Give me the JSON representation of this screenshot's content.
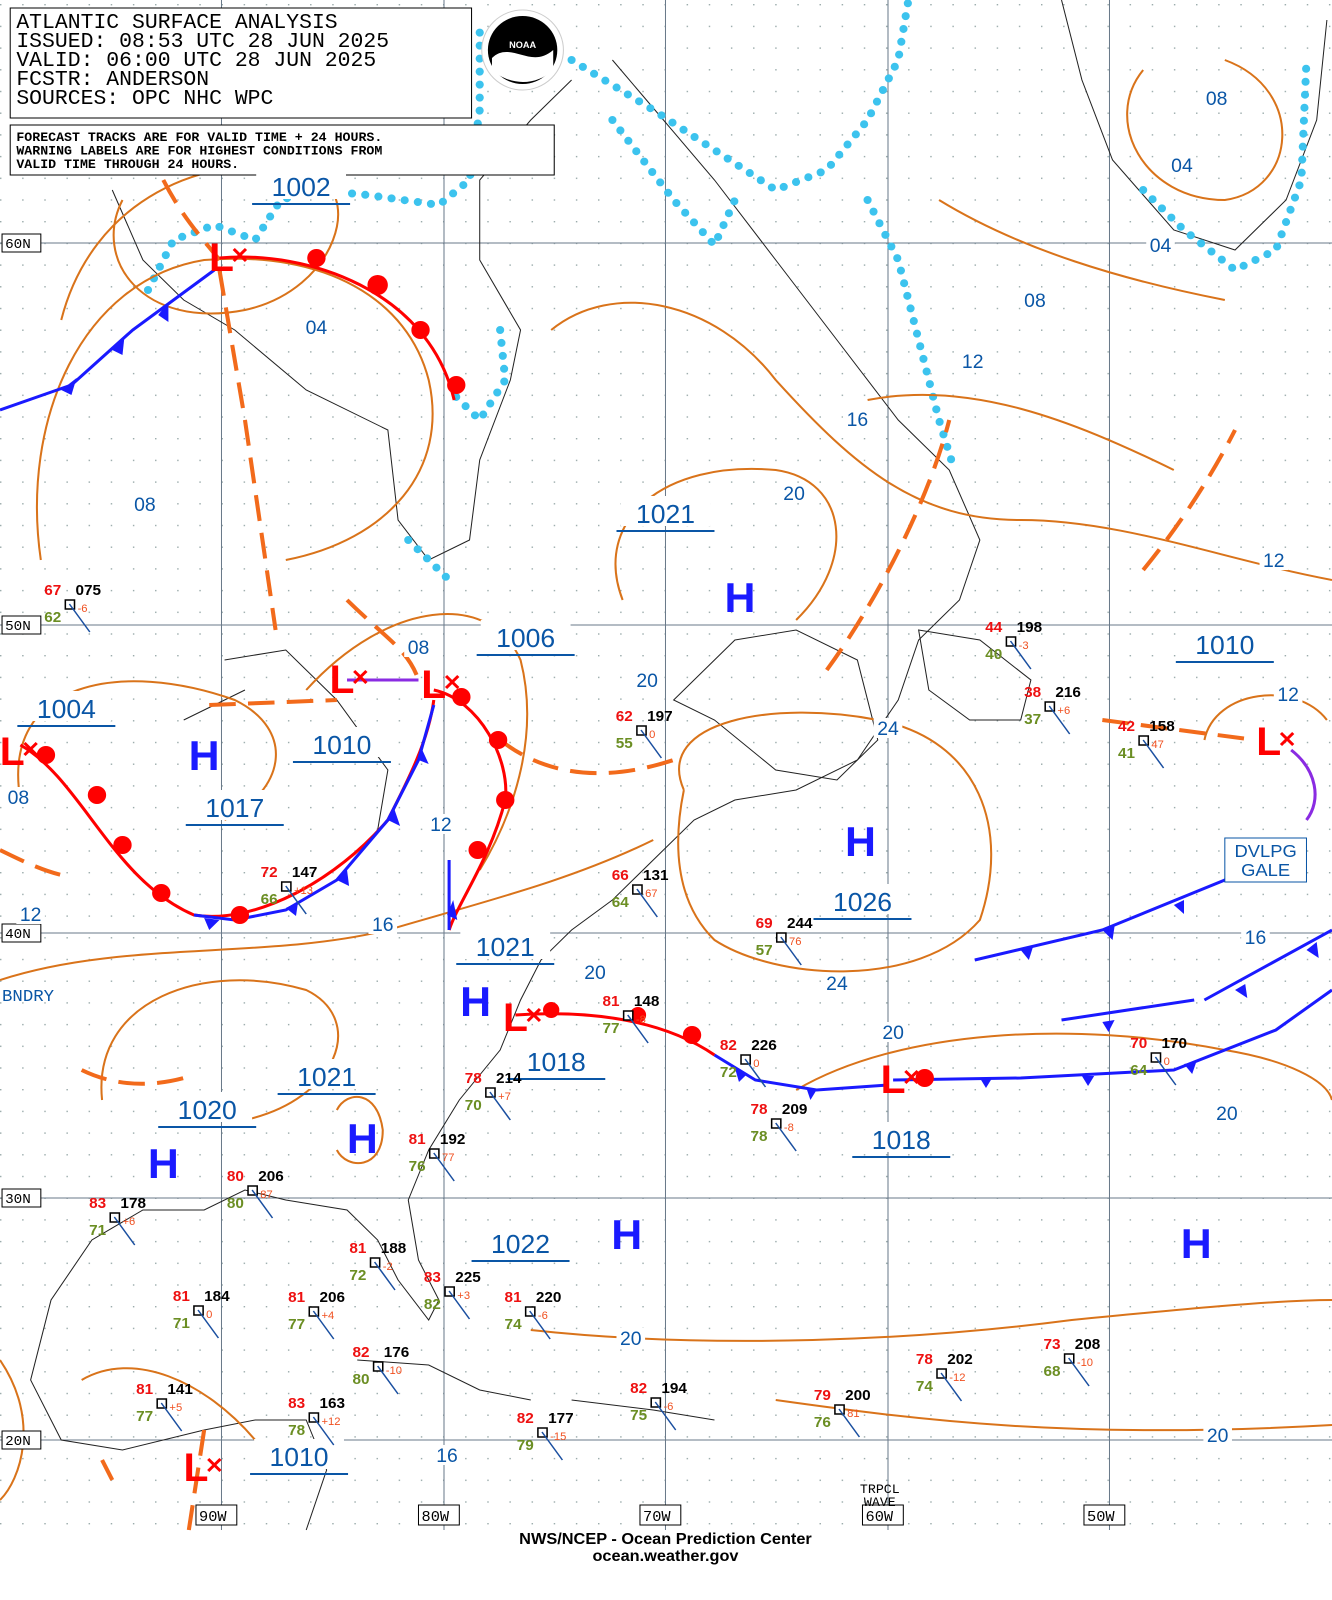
{
  "header": {
    "lines": [
      "ATLANTIC SURFACE ANALYSIS",
      "ISSUED: 08:53 UTC 28 JUN 2025",
      "VALID:  06:00 UTC 28 JUN 2025",
      "FCSTR:  ANDERSON",
      "SOURCES: OPC NHC WPC"
    ],
    "note": [
      "FORECAST TRACKS ARE FOR VALID TIME + 24 HOURS.",
      "WARNING LABELS ARE FOR HIGHEST CONDITIONS FROM",
      "VALID TIME THROUGH 24 HOURS."
    ],
    "logo": "NOAA"
  },
  "lat_labels": [
    "60N",
    "50N",
    "40N",
    "30N",
    "20N"
  ],
  "lon_labels": [
    "90W",
    "80W",
    "70W",
    "60W",
    "50W"
  ],
  "central_pressures": [
    "1002",
    "1021",
    "1006",
    "1010",
    "1004",
    "1010",
    "1017",
    "1026",
    "1021",
    "1018",
    "1021",
    "1020",
    "1018",
    "1022",
    "1010"
  ],
  "systems": [
    "H",
    "H",
    "H",
    "H",
    "H",
    "H",
    "H",
    "H",
    "L",
    "L",
    "L",
    "L",
    "L",
    "L",
    "L",
    "L"
  ],
  "isobar_labels": [
    "08",
    "04",
    "04",
    "08",
    "04",
    "12",
    "16",
    "20",
    "08",
    "12",
    "08",
    "20",
    "12",
    "24",
    "08",
    "12",
    "16",
    "12",
    "16",
    "20",
    "24",
    "20",
    "20",
    "20",
    "20",
    "16"
  ],
  "stations": [
    {
      "temp": 67,
      "pressure": "075",
      "dewpoint": 62,
      "tendency": "-6"
    },
    {
      "temp": 62,
      "pressure": "197",
      "dewpoint": 55,
      "tendency": "0"
    },
    {
      "temp": 72,
      "pressure": "147",
      "dewpoint": 66,
      "tendency": "+13"
    },
    {
      "temp": 66,
      "pressure": "131",
      "dewpoint": 64,
      "tendency": "67"
    },
    {
      "temp": 69,
      "pressure": "244",
      "dewpoint": 57,
      "tendency": "76"
    },
    {
      "temp": 44,
      "pressure": "198",
      "dewpoint": 40,
      "tendency": "-3"
    },
    {
      "temp": 38,
      "pressure": "216",
      "dewpoint": 37,
      "tendency": "+6"
    },
    {
      "temp": 42,
      "pressure": "158",
      "dewpoint": 41,
      "tendency": "47"
    },
    {
      "temp": 81,
      "pressure": "148",
      "dewpoint": 77,
      "tendency": "-8"
    },
    {
      "temp": 82,
      "pressure": "226",
      "dewpoint": 72,
      "tendency": "0"
    },
    {
      "temp": 78,
      "pressure": "209",
      "dewpoint": 78,
      "tendency": "-8"
    },
    {
      "temp": 70,
      "pressure": "170",
      "dewpoint": 64,
      "tendency": "0"
    },
    {
      "temp": 81,
      "pressure": "192",
      "dewpoint": 76,
      "tendency": "77"
    },
    {
      "temp": 80,
      "pressure": "206",
      "dewpoint": 80,
      "tendency": "87"
    },
    {
      "temp": 83,
      "pressure": "178",
      "dewpoint": 71,
      "tendency": "+6"
    },
    {
      "temp": 81,
      "pressure": "188",
      "dewpoint": 72,
      "tendency": "-2"
    },
    {
      "temp": 83,
      "pressure": "225",
      "dewpoint": 82,
      "tendency": "+3"
    },
    {
      "temp": 81,
      "pressure": "220",
      "dewpoint": 74,
      "tendency": "-6"
    },
    {
      "temp": 81,
      "pressure": "184",
      "dewpoint": 71,
      "tendency": "0"
    },
    {
      "temp": 81,
      "pressure": "206",
      "dewpoint": 77,
      "tendency": "+4"
    },
    {
      "temp": 82,
      "pressure": "176",
      "dewpoint": 80,
      "tendency": "-10"
    },
    {
      "temp": 82,
      "pressure": "194",
      "dewpoint": 75,
      "tendency": "-6"
    },
    {
      "temp": 78,
      "pressure": "202",
      "dewpoint": 74,
      "tendency": "-12"
    },
    {
      "temp": 73,
      "pressure": "208",
      "dewpoint": 68,
      "tendency": "-10"
    },
    {
      "temp": 79,
      "pressure": "200",
      "dewpoint": 76,
      "tendency": "81"
    },
    {
      "temp": 81,
      "pressure": "141",
      "dewpoint": 77,
      "tendency": "+5"
    },
    {
      "temp": 83,
      "pressure": "163",
      "dewpoint": 78,
      "tendency": "+12"
    },
    {
      "temp": 82,
      "pressure": "177",
      "dewpoint": 79,
      "tendency": "-15"
    },
    {
      "temp": 78,
      "pressure": "214",
      "dewpoint": 70,
      "tendency": "+7"
    }
  ],
  "annotations": {
    "gale": [
      "DVLPG",
      "GALE"
    ],
    "boundary": "BNDRY",
    "tropical_wave": [
      "TRPCL",
      "WAVE"
    ]
  },
  "footer": {
    "agency": "NWS/NCEP - Ocean Prediction Center",
    "url": "ocean.weather.gov"
  }
}
